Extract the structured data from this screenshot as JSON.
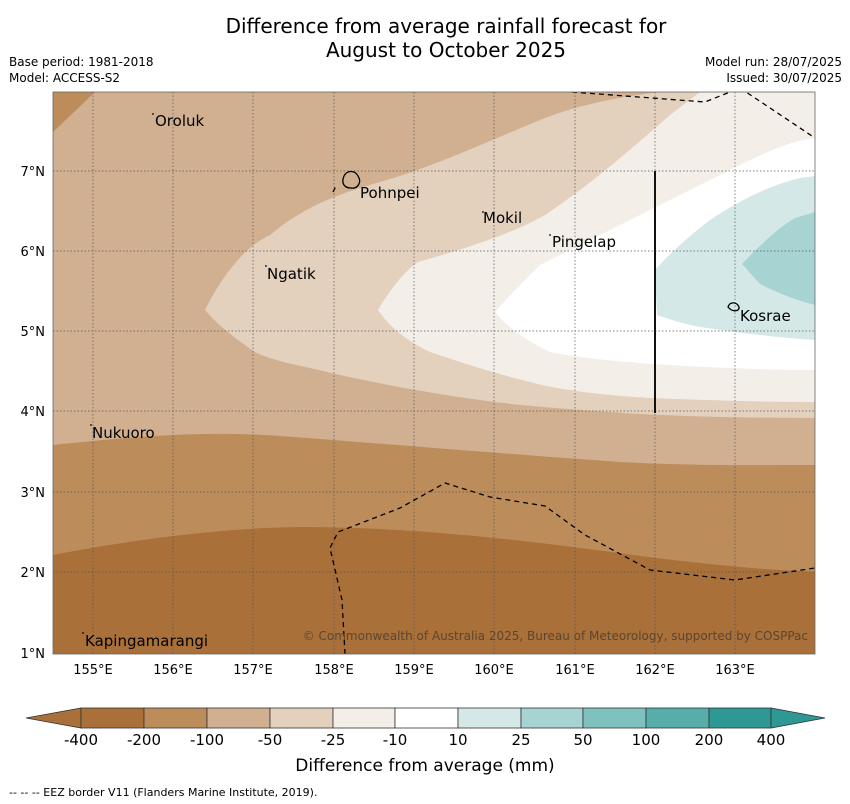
{
  "header": {
    "title_line1": "Difference from average rainfall forecast for",
    "title_line2": "August to October 2025",
    "base_period": "Base period: 1981-2018",
    "model": "Model: ACCESS-S2",
    "model_run": "Model run: 28/07/2025",
    "issued": "Issued: 30/07/2025"
  },
  "map": {
    "lon_ticks": [
      "155°E",
      "156°E",
      "157°E",
      "158°E",
      "159°E",
      "160°E",
      "161°E",
      "162°E",
      "163°E"
    ],
    "lat_ticks": [
      "7°N",
      "6°N",
      "5°N",
      "4°N",
      "3°N",
      "2°N",
      "1°N"
    ],
    "places": [
      "Oroluk",
      "Pohnpei",
      "Mokil",
      "Pingelap",
      "Ngatik",
      "Kosrae",
      "Nukuoro",
      "Kapingamarangi"
    ],
    "copyright": "© Commonwealth of Australia 2025, Bureau of Meteorology, supported by COSPPac",
    "colors": {
      "lt_m400": "#a9703a",
      "m400_m200": "#bd8c5b",
      "m200_m100": "#d0b090",
      "m100_m50": "#e3d0bd",
      "m50_m25": "#f3eee8",
      "m25_m10": "#ffffff",
      "m10_10": "#ffffff",
      "p10_25": "#d4e9e7",
      "p25_50": "#a7d4d3",
      "p50_100": "#7fc1be",
      "p100_200": "#57ada9",
      "p200_400": "#2e9895"
    }
  },
  "colorbar": {
    "labels": [
      "-400",
      "-200",
      "-100",
      "-50",
      "-25",
      "-10",
      "10",
      "25",
      "50",
      "100",
      "200",
      "400"
    ],
    "title": "Difference from average (mm)"
  },
  "footnote": "--  --  -- EEZ border V11 (Flanders Marine Institute, 2019)."
}
